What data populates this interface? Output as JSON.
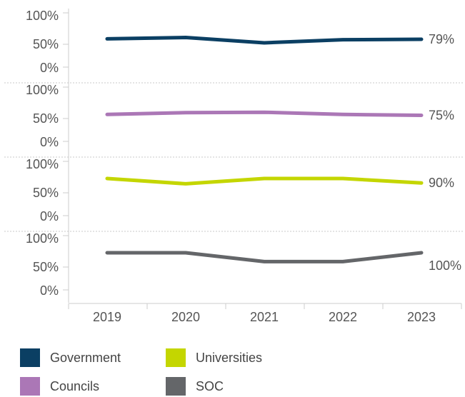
{
  "chart_data": {
    "type": "line",
    "layout": "small-multiples",
    "categories": [
      "2019",
      "2020",
      "2021",
      "2022",
      "2023"
    ],
    "y_ticks": [
      "100%",
      "50%",
      "0%"
    ],
    "ylim": [
      0,
      100
    ],
    "y_unit": "%",
    "grid": false,
    "legend_position": "bottom",
    "series": [
      {
        "name": "Government",
        "color": "#0b3f63",
        "values": [
          80,
          83,
          71,
          78,
          79
        ],
        "end_label": "79%"
      },
      {
        "name": "Councils",
        "color": "#ab77b6",
        "values": [
          77,
          81,
          82,
          77,
          75
        ],
        "end_label": "75%"
      },
      {
        "name": "Universities",
        "color": "#c4d600",
        "values": [
          100,
          88,
          100,
          100,
          90
        ],
        "end_label": "90%"
      },
      {
        "name": "SOC",
        "color": "#646669",
        "values": [
          100,
          100,
          80,
          80,
          100
        ],
        "end_label": "100%"
      }
    ]
  }
}
